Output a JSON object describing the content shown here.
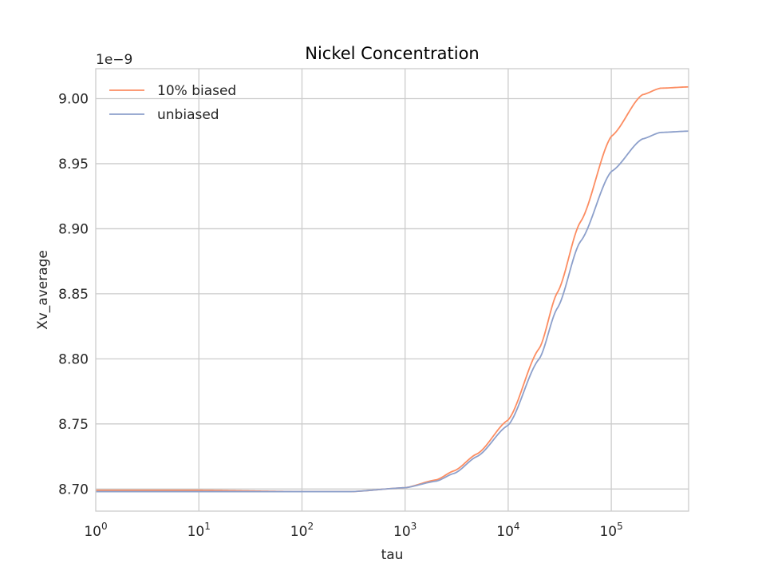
{
  "chart_data": {
    "type": "line",
    "title": "Nickel Concentration",
    "xlabel": "tau",
    "ylabel": "Xv_average",
    "y_offset_label": "1e−9",
    "x_scale": "log",
    "xlim": [
      1,
      562000
    ],
    "ylim": [
      8.683,
      9.023
    ],
    "x_ticks": [
      {
        "value": 1,
        "base": "10",
        "exp": "0"
      },
      {
        "value": 10,
        "base": "10",
        "exp": "1"
      },
      {
        "value": 100,
        "base": "10",
        "exp": "2"
      },
      {
        "value": 1000,
        "base": "10",
        "exp": "3"
      },
      {
        "value": 10000,
        "base": "10",
        "exp": "4"
      },
      {
        "value": 100000,
        "base": "10",
        "exp": "5"
      }
    ],
    "y_ticks": [
      {
        "value": 8.7,
        "label": "8.70"
      },
      {
        "value": 8.75,
        "label": "8.75"
      },
      {
        "value": 8.8,
        "label": "8.80"
      },
      {
        "value": 8.85,
        "label": "8.85"
      },
      {
        "value": 8.9,
        "label": "8.90"
      },
      {
        "value": 8.95,
        "label": "8.95"
      },
      {
        "value": 9.0,
        "label": "9.00"
      }
    ],
    "grid": true,
    "legend_position": "top-left",
    "series": [
      {
        "name": "10% biased",
        "color": "#fc8d62",
        "x": [
          1,
          10,
          100,
          300,
          1000,
          2000,
          3000,
          5000,
          10000,
          20000,
          30000,
          50000,
          100000,
          200000,
          300000,
          562000
        ],
        "y": [
          8.699,
          8.699,
          8.698,
          8.698,
          8.701,
          8.707,
          8.714,
          8.727,
          8.753,
          8.808,
          8.851,
          8.905,
          8.971,
          9.003,
          9.008,
          9.009
        ]
      },
      {
        "name": "unbiased",
        "color": "#8da0cb",
        "x": [
          1,
          10,
          100,
          300,
          1000,
          2000,
          3000,
          5000,
          10000,
          20000,
          30000,
          50000,
          100000,
          200000,
          300000,
          562000
        ],
        "y": [
          8.698,
          8.698,
          8.698,
          8.698,
          8.701,
          8.706,
          8.712,
          8.725,
          8.749,
          8.8,
          8.839,
          8.89,
          8.944,
          8.969,
          8.974,
          8.975
        ]
      }
    ]
  }
}
